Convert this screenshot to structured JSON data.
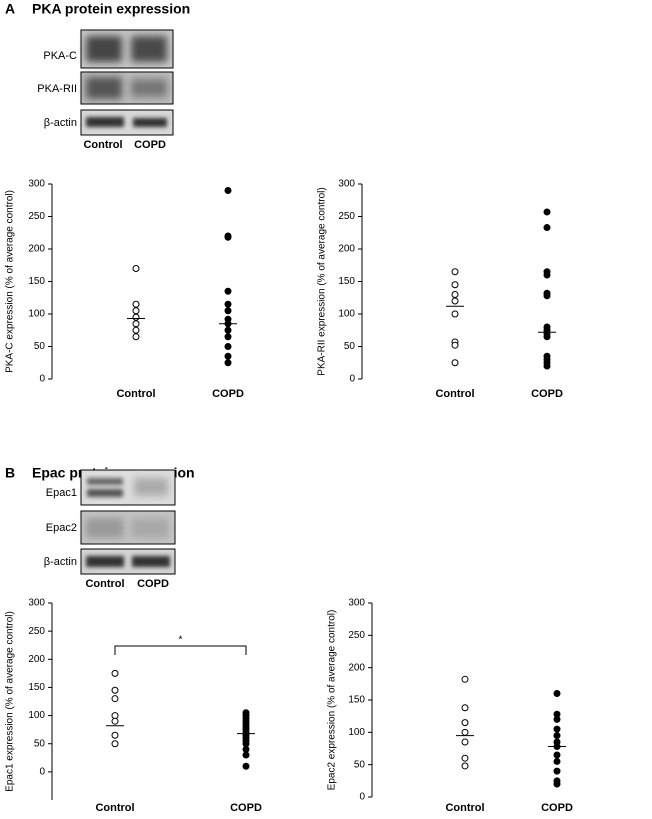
{
  "panels": [
    {
      "letter": "A",
      "title": "PKA protein expression",
      "blots": [
        "PKA-C",
        "PKA-RII",
        "β-actin"
      ],
      "lanes": [
        "Control",
        "COPD"
      ]
    },
    {
      "letter": "B",
      "title": "Epac  protein expression",
      "blots": [
        "Epac1",
        "Epac2",
        "β-actin"
      ],
      "lanes": [
        "Control",
        "COPD"
      ]
    }
  ],
  "chart_data": [
    {
      "type": "dot",
      "ylabel": "PKA-C expression (% of average control)",
      "categories": [
        "Control",
        "COPD"
      ],
      "groups": [
        {
          "marker": "open",
          "values": [
            170,
            115,
            105,
            95,
            85,
            75,
            65
          ],
          "median": 93
        },
        {
          "marker": "filled",
          "values": [
            290,
            220,
            218,
            135,
            115,
            105,
            92,
            85,
            75,
            65,
            50,
            35,
            25
          ],
          "median": 85
        }
      ],
      "ylim": [
        0,
        300
      ],
      "yticks": [
        0,
        50,
        100,
        150,
        200,
        250,
        300
      ]
    },
    {
      "type": "dot",
      "ylabel": "PKA-RII expression (% of average control)",
      "categories": [
        "Control",
        "COPD"
      ],
      "groups": [
        {
          "marker": "open",
          "values": [
            165,
            145,
            130,
            120,
            100,
            57,
            52,
            25
          ],
          "median": 112
        },
        {
          "marker": "filled",
          "values": [
            257,
            233,
            165,
            160,
            132,
            128,
            80,
            75,
            70,
            65,
            35,
            30,
            25,
            20
          ],
          "median": 72
        }
      ],
      "ylim": [
        0,
        300
      ],
      "yticks": [
        0,
        50,
        100,
        150,
        200,
        250,
        300
      ]
    },
    {
      "type": "dot",
      "ylabel": "Epac1 expression (% of average control)",
      "categories": [
        "Control",
        "COPD"
      ],
      "groups": [
        {
          "marker": "open",
          "values": [
            175,
            145,
            130,
            100,
            90,
            65,
            50
          ],
          "median": 82
        },
        {
          "marker": "filled",
          "values": [
            105,
            100,
            95,
            90,
            85,
            80,
            75,
            70,
            65,
            60,
            55,
            50,
            40,
            30,
            10
          ],
          "median": 68
        }
      ],
      "annotation": "*",
      "ylim": [
        -50,
        300
      ],
      "yticks": [
        0,
        50,
        100,
        150,
        200,
        250,
        300
      ]
    },
    {
      "type": "dot",
      "ylabel": "Epac2 expression (% of average control)",
      "categories": [
        "Control",
        "COPD"
      ],
      "groups": [
        {
          "marker": "open",
          "values": [
            182,
            138,
            115,
            100,
            85,
            60,
            48
          ],
          "median": 95
        },
        {
          "marker": "filled",
          "values": [
            160,
            128,
            120,
            105,
            95,
            85,
            78,
            65,
            55,
            40,
            25,
            20
          ],
          "median": 78
        }
      ],
      "ylim": [
        0,
        300
      ],
      "yticks": [
        0,
        50,
        100,
        150,
        200,
        250,
        300
      ]
    }
  ]
}
